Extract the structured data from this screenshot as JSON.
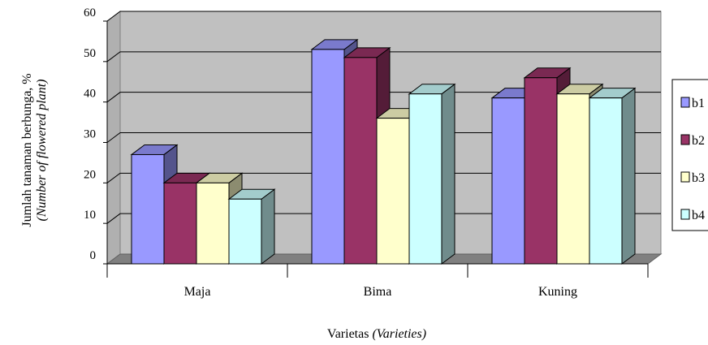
{
  "chart_data": {
    "type": "bar",
    "style": "3d-clustered-column",
    "categories": [
      "Maja",
      "Bima",
      "Kuning"
    ],
    "series": [
      {
        "name": "b1",
        "values": [
          27,
          53,
          41
        ],
        "color": "#9999ff"
      },
      {
        "name": "b2",
        "values": [
          20,
          51,
          46
        ],
        "color": "#993366"
      },
      {
        "name": "b3",
        "values": [
          20,
          36,
          42
        ],
        "color": "#ffffcc"
      },
      {
        "name": "b4",
        "values": [
          16,
          42,
          41
        ],
        "color": "#ccffff"
      }
    ],
    "ylim": [
      0,
      60
    ],
    "yticks": [
      "0",
      "10",
      "20",
      "30",
      "40",
      "50",
      "60"
    ],
    "ylabel_main": "Jumlah tanaman berbunga, %",
    "ylabel_italic": "(Number of flowered plant)",
    "xlabel_main": "Varietas ",
    "xlabel_italic": "(Varieties)",
    "grid": true,
    "legend_position": "right",
    "plot_background": "#c0c0c0"
  }
}
